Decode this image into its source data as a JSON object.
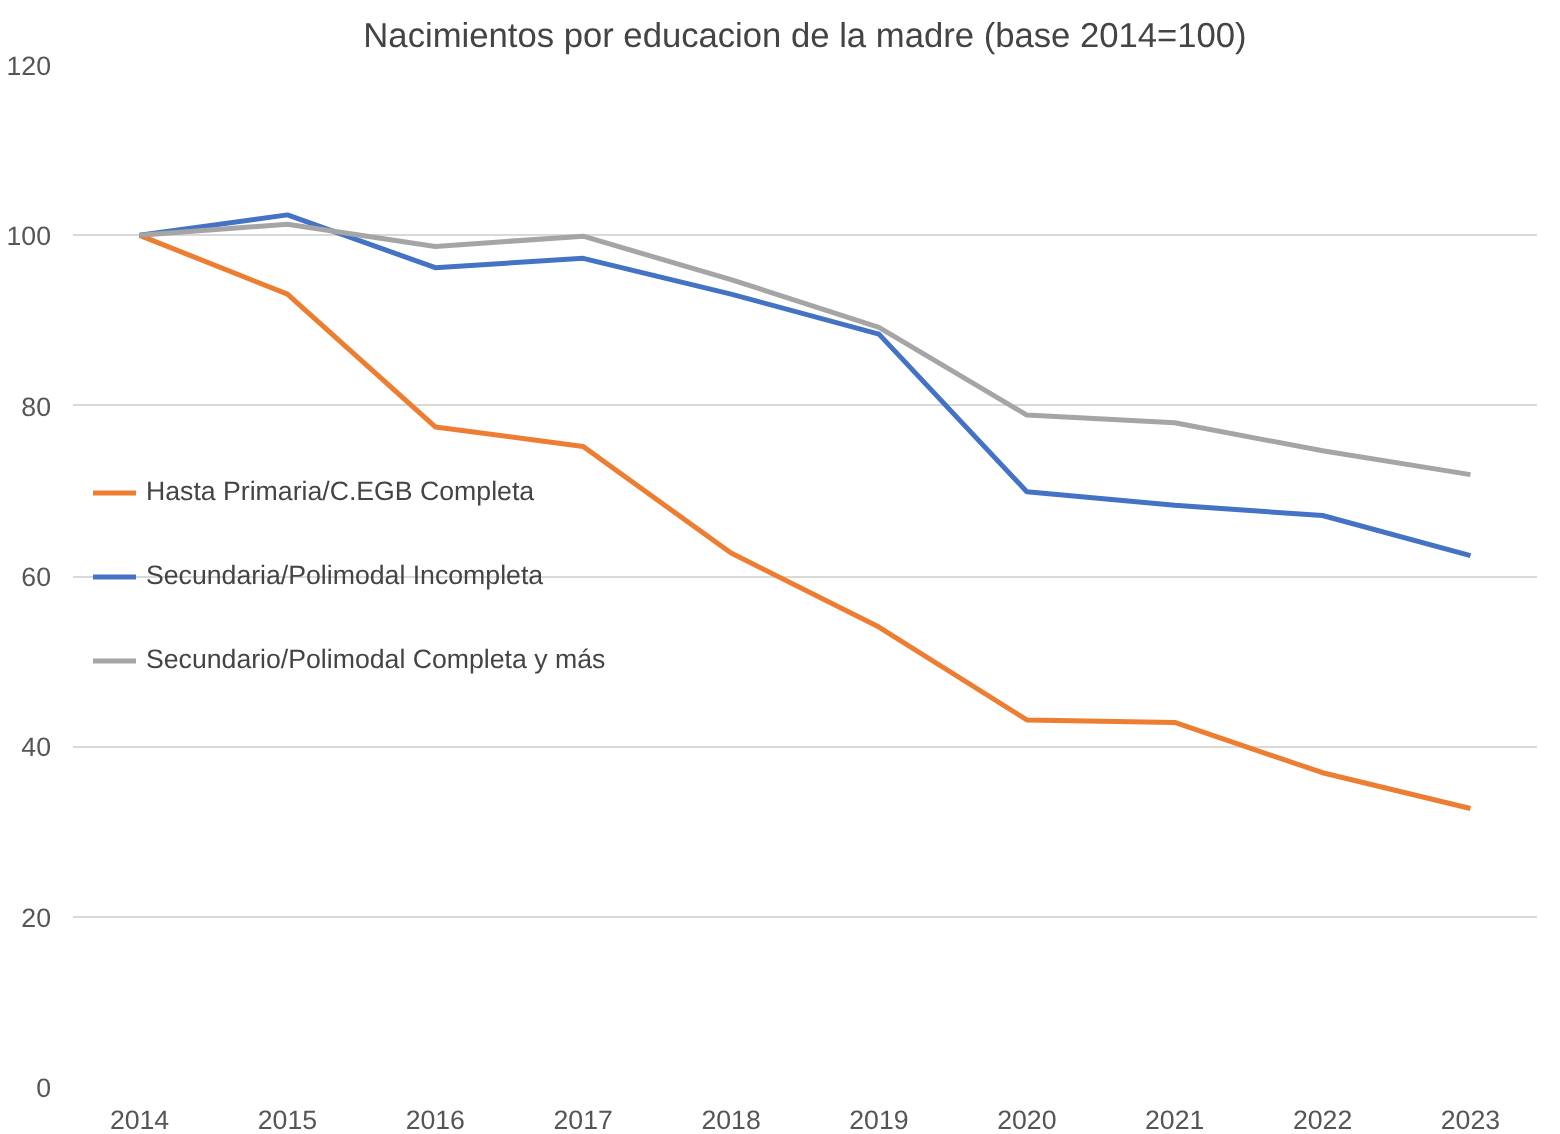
{
  "chart_data": {
    "type": "line",
    "title": "Nacimientos por educacion de la madre (base 2014=100)",
    "categories": [
      "2014",
      "2015",
      "2016",
      "2017",
      "2018",
      "2019",
      "2020",
      "2021",
      "2022",
      "2023"
    ],
    "series": [
      {
        "name": "Hasta Primaria/C.EGB Completa",
        "color": "#ed7d31",
        "values": [
          100,
          93.1,
          77.5,
          75.2,
          62.7,
          54,
          43.1,
          42.8,
          36.9,
          32.7
        ]
      },
      {
        "name": "Secundaria/Polimodal Incompleta",
        "color": "#4472c4",
        "values": [
          100,
          102.4,
          96.2,
          97.3,
          93.1,
          88.4,
          69.9,
          68.3,
          67.1,
          62.4
        ]
      },
      {
        "name": "Secundario/Polimodal Completa y más",
        "color": "#a5a5a5",
        "values": [
          100,
          101.3,
          98.7,
          99.9,
          94.8,
          89.2,
          78.9,
          78,
          74.7,
          71.9
        ]
      }
    ],
    "ylim": [
      0,
      120
    ],
    "yticks": [
      0,
      20,
      40,
      60,
      80,
      100,
      120
    ],
    "grid": "y",
    "legend": "left",
    "line_style": "solid",
    "marker": "none"
  }
}
